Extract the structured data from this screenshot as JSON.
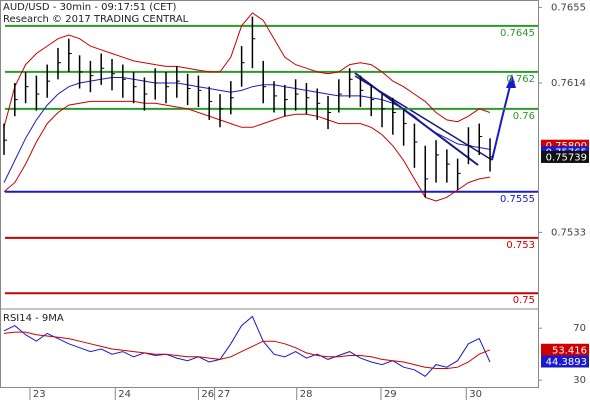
{
  "chart_data": [
    {
      "type": "ohlc",
      "title": "AUD/USD - 30min - 09:17:51 (CET)",
      "subtitle": "Research © 2017 TRADING CENTRAL",
      "x": [
        0,
        1,
        2,
        3,
        4,
        5,
        6,
        7,
        8,
        9,
        10,
        11,
        12,
        13,
        14,
        15,
        16,
        17,
        18,
        19,
        20,
        21,
        22,
        23,
        24,
        25,
        26,
        27,
        28,
        29,
        30,
        31,
        32,
        33,
        34,
        35,
        36,
        37,
        38,
        39,
        40,
        41,
        42,
        43,
        44,
        45
      ],
      "xlim": [
        -0.37,
        49.44
      ],
      "ylim": [
        0.7492,
        0.7659
      ],
      "yticks": [
        0.7655,
        0.7614,
        0.7533
      ],
      "high": [
        0.7592,
        0.7614,
        0.762,
        0.7618,
        0.7624,
        0.7633,
        0.7638,
        0.7629,
        0.7626,
        0.763,
        0.7627,
        0.7624,
        0.762,
        0.7617,
        0.7622,
        0.762,
        0.7623,
        0.7619,
        0.7618,
        0.7612,
        0.7608,
        0.7615,
        0.7634,
        0.765,
        0.7626,
        0.7615,
        0.7613,
        0.7616,
        0.7614,
        0.7611,
        0.7607,
        0.7616,
        0.7622,
        0.7618,
        0.7613,
        0.7608,
        0.7606,
        0.76,
        0.7592,
        0.758,
        0.7583,
        0.7578,
        0.7573,
        0.759,
        0.7592,
        0.7584
      ],
      "low": [
        0.7575,
        0.7596,
        0.7603,
        0.7599,
        0.7606,
        0.7616,
        0.762,
        0.7611,
        0.7609,
        0.7613,
        0.761,
        0.7606,
        0.7603,
        0.7599,
        0.7605,
        0.7603,
        0.7606,
        0.7602,
        0.7601,
        0.7594,
        0.759,
        0.7597,
        0.7612,
        0.7622,
        0.7603,
        0.7598,
        0.7596,
        0.7599,
        0.7597,
        0.7594,
        0.7589,
        0.7598,
        0.7606,
        0.7601,
        0.7596,
        0.759,
        0.7586,
        0.758,
        0.7568,
        0.7552,
        0.756,
        0.756,
        0.7556,
        0.757,
        0.7575,
        0.7566
      ],
      "close": [
        0.7583,
        0.7605,
        0.7612,
        0.7608,
        0.7615,
        0.7625,
        0.763,
        0.762,
        0.7618,
        0.7622,
        0.7619,
        0.7616,
        0.7612,
        0.7608,
        0.7614,
        0.7612,
        0.7615,
        0.7611,
        0.761,
        0.7604,
        0.76,
        0.7606,
        0.7625,
        0.7638,
        0.7612,
        0.7607,
        0.7605,
        0.7608,
        0.7606,
        0.7603,
        0.7598,
        0.7608,
        0.7616,
        0.761,
        0.7605,
        0.76,
        0.7598,
        0.7592,
        0.7582,
        0.7562,
        0.7575,
        0.757,
        0.7565,
        0.758,
        0.7585,
        0.7574
      ],
      "series": [
        {
          "color": "#1a1acc",
          "values": [
            0.756,
            0.7572,
            0.7584,
            0.7594,
            0.7602,
            0.7608,
            0.7612,
            0.7614,
            0.7615,
            0.7616,
            0.7617,
            0.7617,
            0.7616,
            0.7615,
            0.7614,
            0.7614,
            0.7614,
            0.7613,
            0.7612,
            0.7611,
            0.761,
            0.7609,
            0.761,
            0.7612,
            0.7613,
            0.7613,
            0.7612,
            0.7611,
            0.761,
            0.7609,
            0.7608,
            0.7607,
            0.7607,
            0.7607,
            0.7606,
            0.7605,
            0.7603,
            0.76,
            0.7596,
            0.7591,
            0.7587,
            0.7584,
            0.7581,
            0.758,
            0.7579,
            0.7578
          ]
        },
        {
          "color": "#cc0000",
          "values": [
            0.759,
            0.7612,
            0.7624,
            0.763,
            0.7634,
            0.7638,
            0.764,
            0.7638,
            0.7634,
            0.7632,
            0.763,
            0.7628,
            0.7626,
            0.7625,
            0.7624,
            0.7623,
            0.7623,
            0.7622,
            0.7621,
            0.762,
            0.762,
            0.7628,
            0.7645,
            0.7652,
            0.7648,
            0.7638,
            0.7628,
            0.7624,
            0.7622,
            0.762,
            0.7619,
            0.762,
            0.7624,
            0.7625,
            0.7624,
            0.762,
            0.7615,
            0.7612,
            0.7608,
            0.7604,
            0.7598,
            0.7594,
            0.7593,
            0.7596,
            0.76,
            0.7598
          ]
        },
        {
          "color": "#cc0000",
          "values": [
            0.7555,
            0.756,
            0.757,
            0.7582,
            0.7592,
            0.7598,
            0.7602,
            0.7603,
            0.7604,
            0.7604,
            0.7604,
            0.7604,
            0.7604,
            0.7603,
            0.7603,
            0.7602,
            0.7601,
            0.76,
            0.7598,
            0.7596,
            0.7594,
            0.7592,
            0.759,
            0.759,
            0.7592,
            0.7594,
            0.7596,
            0.7597,
            0.7597,
            0.7596,
            0.7594,
            0.7592,
            0.7592,
            0.7592,
            0.759,
            0.7586,
            0.758,
            0.7572,
            0.7562,
            0.7552,
            0.755,
            0.7552,
            0.7556,
            0.756,
            0.7562,
            0.7563
          ]
        }
      ],
      "levels": [
        {
          "value": 0.7645,
          "color": "#2a9a2a"
        },
        {
          "value": 0.762,
          "color": "#2a9a2a"
        },
        {
          "value": 0.76,
          "color": "#2a9a2a"
        },
        {
          "value": 0.7555,
          "color": "#1a1acc"
        },
        {
          "value": 0.753,
          "color": "#cc0000"
        },
        {
          "value": 0.75,
          "color": "#cc0000"
        }
      ],
      "price_markers": [
        {
          "value": 0.758,
          "label": "0.75800",
          "color": "#cc0000"
        },
        {
          "value": 0.75765,
          "color": "#1a1acc"
        },
        {
          "value": 0.75739,
          "color": "#111111"
        }
      ]
    },
    {
      "type": "line",
      "title": "RSI14 - 9MA",
      "x": [
        0,
        1,
        2,
        3,
        4,
        5,
        6,
        7,
        8,
        9,
        10,
        11,
        12,
        13,
        14,
        15,
        16,
        17,
        18,
        19,
        20,
        21,
        22,
        23,
        24,
        25,
        26,
        27,
        28,
        29,
        30,
        31,
        32,
        33,
        34,
        35,
        36,
        37,
        38,
        39,
        40,
        41,
        42,
        43,
        44,
        45
      ],
      "xlim": [
        -0.37,
        49.44
      ],
      "ylim": [
        24,
        84
      ],
      "yticks": [
        70,
        30
      ],
      "xticks": [
        {
          "value": 2.4,
          "label": "23"
        },
        {
          "value": 10.3,
          "label": "24"
        },
        {
          "value": 18,
          "label": "26"
        },
        {
          "value": 19.5,
          "label": "27"
        },
        {
          "value": 27.1,
          "label": "28"
        },
        {
          "value": 34.9,
          "label": "29"
        },
        {
          "value": 42.8,
          "label": "30"
        }
      ],
      "series": [
        {
          "color": "#1a1acc",
          "values": [
            68,
            72,
            65,
            60,
            66,
            62,
            58,
            55,
            52,
            54,
            50,
            52,
            48,
            51,
            49,
            50,
            47,
            45,
            48,
            44,
            46,
            58,
            72,
            79,
            60,
            50,
            48,
            52,
            47,
            50,
            46,
            49,
            52,
            47,
            44,
            42,
            45,
            40,
            38,
            33,
            42,
            40,
            45,
            58,
            62,
            44
          ]
        },
        {
          "color": "#cc0000",
          "values": [
            66,
            67,
            67,
            65,
            64,
            63,
            62,
            60,
            58,
            56,
            54,
            53,
            52,
            51,
            50,
            50,
            49,
            48,
            48,
            47,
            46,
            48,
            52,
            56,
            60,
            60,
            58,
            55,
            51,
            49,
            48,
            48,
            49,
            49,
            48,
            46,
            45,
            44,
            42,
            40,
            39,
            39,
            40,
            44,
            50,
            53.4
          ]
        }
      ],
      "price_markers": [
        {
          "value": 53.416,
          "color": "#cc0000"
        },
        {
          "value": 44.3893,
          "color": "#1a1acc"
        }
      ]
    }
  ]
}
